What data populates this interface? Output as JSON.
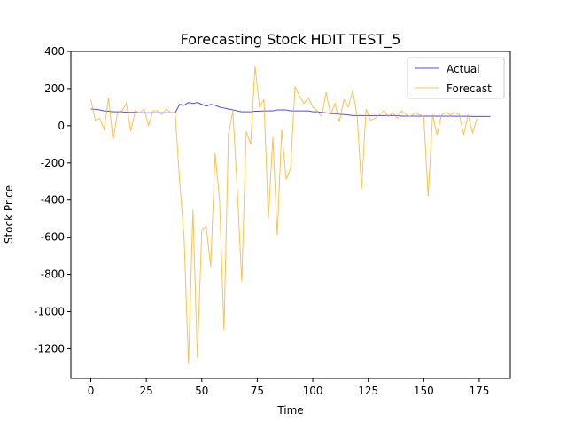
{
  "chart_data": {
    "type": "line",
    "title": "Forecasting Stock HDIT TEST_5",
    "x_label": "Time",
    "y_label": "Stock Price",
    "x": [
      0,
      2,
      4,
      6,
      8,
      10,
      12,
      14,
      16,
      18,
      20,
      22,
      24,
      26,
      28,
      30,
      32,
      34,
      36,
      38,
      40,
      42,
      44,
      46,
      48,
      50,
      52,
      54,
      56,
      58,
      60,
      62,
      64,
      66,
      68,
      70,
      72,
      74,
      76,
      78,
      80,
      82,
      84,
      86,
      88,
      90,
      92,
      94,
      96,
      98,
      100,
      102,
      104,
      106,
      108,
      110,
      112,
      114,
      116,
      118,
      120,
      122,
      124,
      126,
      128,
      130,
      132,
      134,
      136,
      138,
      140,
      142,
      144,
      146,
      148,
      150,
      152,
      154,
      156,
      158,
      160,
      162,
      164,
      166,
      168,
      170,
      172,
      174,
      176,
      178,
      180
    ],
    "series": [
      {
        "name": "Actual",
        "color": "#0000ff",
        "values": [
          90,
          88,
          85,
          80,
          78,
          75,
          75,
          75,
          73,
          72,
          72,
          70,
          70,
          70,
          70,
          70,
          70,
          70,
          70,
          70,
          115,
          110,
          125,
          120,
          125,
          115,
          105,
          115,
          110,
          100,
          95,
          90,
          85,
          80,
          75,
          75,
          75,
          78,
          78,
          80,
          80,
          80,
          85,
          85,
          85,
          80,
          80,
          80,
          80,
          80,
          75,
          75,
          72,
          70,
          65,
          65,
          62,
          60,
          58,
          55,
          55,
          55,
          55,
          55,
          55,
          55,
          55,
          55,
          55,
          55,
          52,
          52,
          52,
          52,
          52,
          52,
          52,
          52,
          52,
          52,
          52,
          52,
          51,
          51,
          51,
          51,
          50,
          50,
          50,
          50,
          50
        ]
      },
      {
        "name": "Forecast",
        "color": "#ffa500",
        "values": [
          140,
          30,
          40,
          -20,
          150,
          -80,
          70,
          80,
          120,
          -30,
          80,
          70,
          90,
          0,
          80,
          80,
          60,
          90,
          70,
          70,
          -300,
          -600,
          -1280,
          -450,
          -1250,
          -560,
          -540,
          -760,
          -150,
          -400,
          -1100,
          -50,
          80,
          -350,
          -840,
          -30,
          -100,
          320,
          100,
          140,
          -500,
          -60,
          -590,
          -20,
          -290,
          -230,
          210,
          160,
          120,
          150,
          100,
          80,
          50,
          180,
          60,
          120,
          20,
          140,
          100,
          190,
          50,
          -340,
          90,
          30,
          40,
          60,
          80,
          50,
          70,
          40,
          80,
          60,
          50,
          70,
          60,
          50,
          -380,
          60,
          -50,
          60,
          70,
          60,
          70,
          60,
          -50,
          60,
          -40,
          40,
          null,
          null,
          null
        ]
      }
    ],
    "xlim": [
      -9,
      189
    ],
    "ylim": [
      -1360,
      400
    ],
    "xticks": [
      0,
      25,
      50,
      75,
      100,
      125,
      150,
      175
    ],
    "yticks": [
      -1200,
      -1000,
      -800,
      -600,
      -400,
      -200,
      0,
      200,
      400
    ],
    "legend": "upper right"
  }
}
